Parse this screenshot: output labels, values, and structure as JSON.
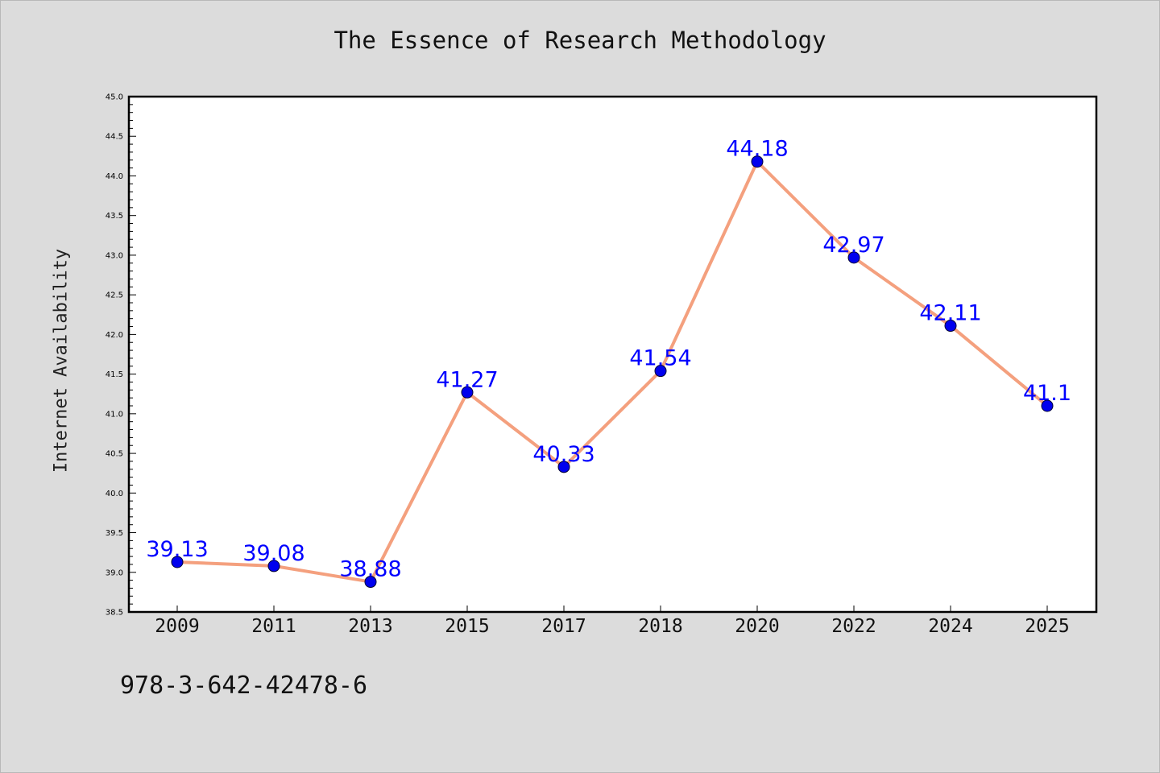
{
  "chart_data": {
    "type": "line",
    "title": "The Essence of Research Methodology",
    "xlabel": "",
    "ylabel": "Internet Availability",
    "categories": [
      "2009",
      "2011",
      "2013",
      "2015",
      "2017",
      "2018",
      "2020",
      "2022",
      "2024",
      "2025"
    ],
    "series": [
      {
        "values": [
          39.13,
          39.08,
          38.88,
          41.27,
          40.33,
          41.54,
          44.18,
          42.97,
          42.11,
          41.1
        ],
        "labels": [
          "39.13",
          "39.08",
          "38.88",
          "41.27",
          "40.33",
          "41.54",
          "44.18",
          "42.97",
          "42.11",
          "41.1"
        ]
      }
    ],
    "ylim": [
      38.5,
      45.0
    ],
    "yticks": [
      "38.5",
      "39.0",
      "39.5",
      "40.0",
      "40.5",
      "41.0",
      "41.5",
      "42.0",
      "42.5",
      "43.0",
      "43.5",
      "44.0",
      "44.5",
      "45.0"
    ],
    "grid": false,
    "line_color": "#f4a07e",
    "marker_color": "#0000ee",
    "label_color": "#0000ff"
  },
  "footer": {
    "isbn": "978-3-642-42478-6"
  }
}
